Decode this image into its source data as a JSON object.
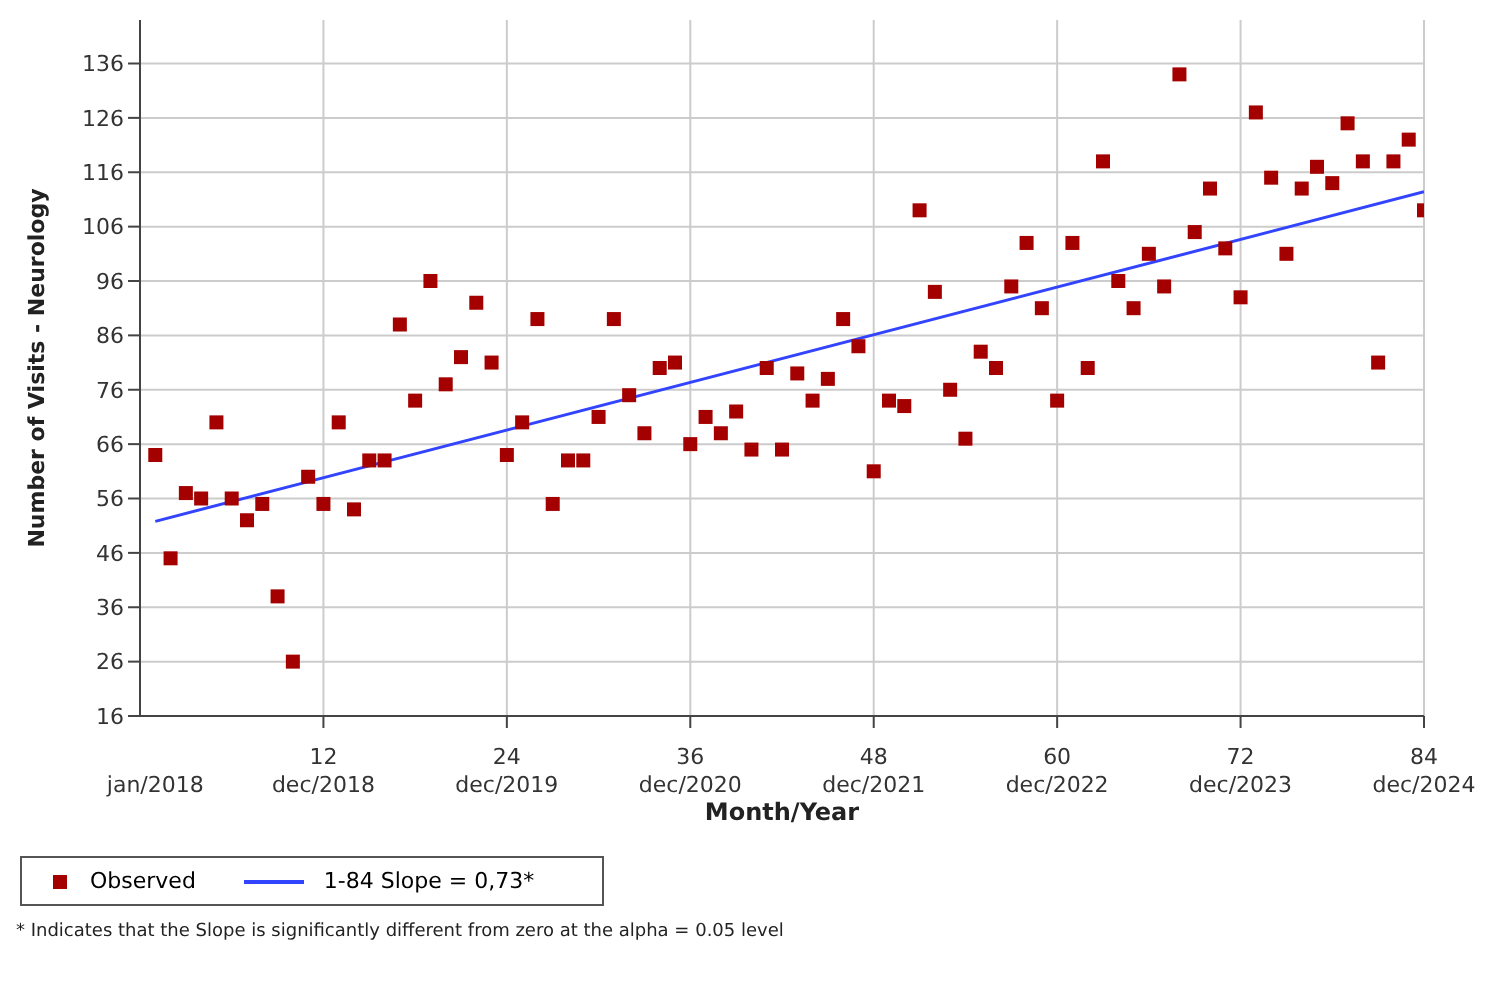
{
  "chart_data": {
    "type": "scatter",
    "xlabel": "Month/Year",
    "ylabel": "Number of Visits - Neurology",
    "x": [
      1,
      2,
      3,
      4,
      5,
      6,
      7,
      8,
      9,
      10,
      11,
      12,
      13,
      14,
      15,
      16,
      17,
      18,
      19,
      20,
      21,
      22,
      23,
      24,
      25,
      26,
      27,
      28,
      29,
      30,
      31,
      32,
      33,
      34,
      35,
      36,
      37,
      38,
      39,
      40,
      41,
      42,
      43,
      44,
      45,
      46,
      47,
      48,
      49,
      50,
      51,
      52,
      53,
      54,
      55,
      56,
      57,
      58,
      59,
      60,
      61,
      62,
      63,
      64,
      65,
      66,
      67,
      68,
      69,
      70,
      71,
      72,
      73,
      74,
      75,
      76,
      77,
      78,
      79,
      80,
      81,
      82,
      83,
      84
    ],
    "series": [
      {
        "name": "Observed",
        "marker": "square",
        "color": "#a50000",
        "values": [
          64,
          45,
          57,
          56,
          70,
          56,
          52,
          55,
          38,
          26,
          60,
          55,
          70,
          54,
          63,
          63,
          88,
          74,
          96,
          77,
          82,
          92,
          81,
          64,
          70,
          89,
          55,
          63,
          63,
          71,
          89,
          75,
          68,
          80,
          81,
          66,
          71,
          68,
          72,
          65,
          80,
          65,
          79,
          74,
          78,
          89,
          84,
          61,
          74,
          73,
          109,
          94,
          76,
          67,
          83,
          80,
          95,
          103,
          91,
          74,
          103,
          80,
          118,
          96,
          91,
          101,
          95,
          134,
          105,
          113,
          102,
          93,
          127,
          115,
          101,
          113,
          117,
          114,
          125,
          118,
          81,
          118,
          122,
          109
        ]
      },
      {
        "name": "1-84 Slope = 0,73*",
        "type": "line",
        "marker": "none",
        "color": "#3344ff",
        "x": [
          1,
          84
        ],
        "values": [
          51.8,
          112.4
        ]
      }
    ],
    "xlim": [
      0,
      84
    ],
    "xticks": [
      12,
      24,
      36,
      48,
      60,
      72,
      84
    ],
    "ylim": [
      16,
      144
    ],
    "yticks": [
      16,
      26,
      36,
      46,
      56,
      66,
      76,
      86,
      96,
      106,
      116,
      126,
      136
    ],
    "grid": true,
    "legend": "bottom left",
    "x2lim": [
      "2017-12",
      "2024-12"
    ],
    "x2ticks": [
      {
        "value": "2018-01",
        "label": "jan/2018"
      },
      {
        "value": "2018-12",
        "label": "dec/2018"
      },
      {
        "value": "2019-12",
        "label": "dec/2019"
      },
      {
        "value": "2020-12",
        "label": "dec/2020"
      },
      {
        "value": "2021-12",
        "label": "dec/2021"
      },
      {
        "value": "2022-12",
        "label": "dec/2022"
      },
      {
        "value": "2023-12",
        "label": "dec/2023"
      },
      {
        "value": "2024-12",
        "label": "dec/2024"
      }
    ],
    "annotations": [
      "* Indicates that the Slope is significantly different from zero at the alpha = 0.05 level"
    ]
  }
}
